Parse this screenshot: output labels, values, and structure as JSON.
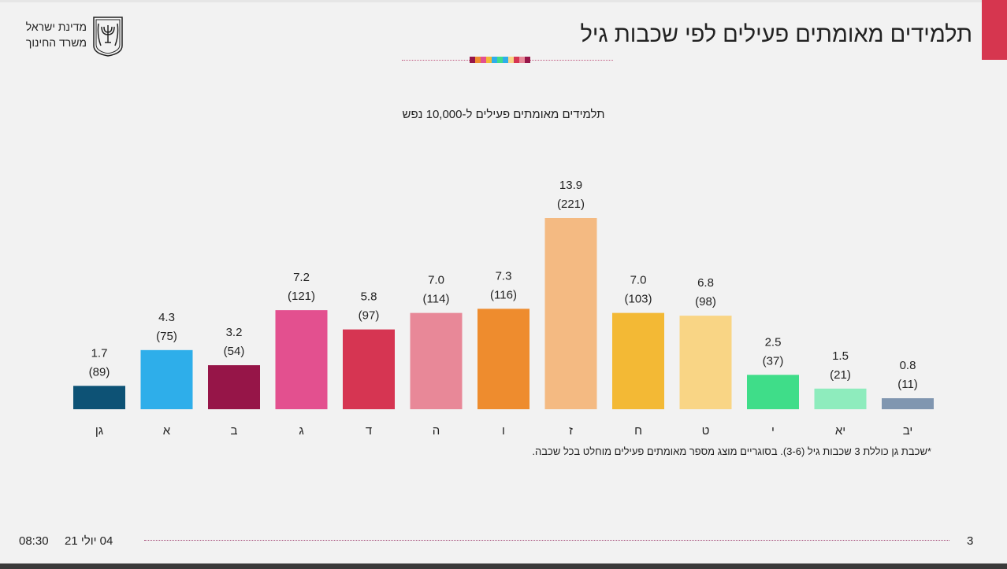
{
  "header": {
    "title": "תלמידים מאומתים פעילים לפי שכבות גיל",
    "logo_line1": "מדינת ישראל",
    "logo_line2": "משרד החינוך",
    "logo_emblem_text": "ישראל",
    "accent": "#d6364f"
  },
  "chart_data": {
    "type": "bar",
    "title": "תלמידים מאומתים פעילים ל-10,000 נפש",
    "categories": [
      "גן",
      "א",
      "ב",
      "ג",
      "ד",
      "ה",
      "ו",
      "ז",
      "ח",
      "ט",
      "י",
      "יא",
      "יב"
    ],
    "values": [
      1.7,
      4.3,
      3.2,
      7.2,
      5.8,
      7.0,
      7.3,
      13.9,
      7.0,
      6.8,
      2.5,
      1.5,
      0.8
    ],
    "value_labels": [
      "1.7",
      "4.3",
      "3.2",
      "7.2",
      "5.8",
      "7.0",
      "7.3",
      "13.9",
      "7.0",
      "6.8",
      "2.5",
      "1.5",
      "0.8"
    ],
    "absolute_counts": [
      89,
      75,
      54,
      121,
      97,
      114,
      116,
      221,
      103,
      98,
      37,
      21,
      11
    ],
    "count_labels": [
      "(89)",
      "(75)",
      "(54)",
      "(121)",
      "(97)",
      "(114)",
      "(116)",
      "(221)",
      "(103)",
      "(98)",
      "(37)",
      "(21)",
      "(11)"
    ],
    "colors": [
      "#0d5275",
      "#2eaeea",
      "#961548",
      "#e3508f",
      "#d63552",
      "#e88898",
      "#ee8c2e",
      "#f4ba82",
      "#f3b935",
      "#f9d585",
      "#3fdd89",
      "#8eecbd",
      "#8096b0"
    ],
    "grid": false,
    "ylim": [
      0,
      13.9
    ]
  },
  "footnote": "*שכבת גן כוללת 3 שכבות גיל (3-6). בסוגריים מוצג מספר מאומתים פעילים מוחלט בכל שכבה.",
  "footer": {
    "date": "04 יולי 21",
    "time": "08:30",
    "page": "3"
  }
}
